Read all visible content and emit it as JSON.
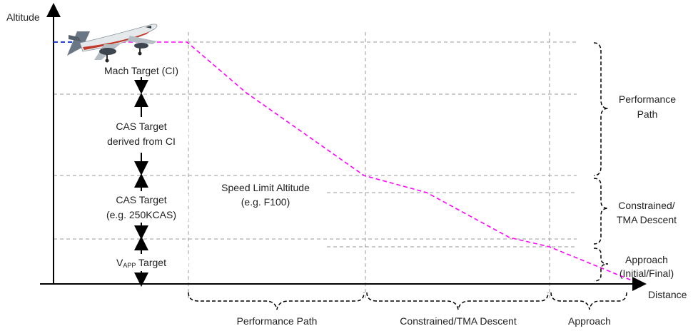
{
  "axes": {
    "y_label": "Altitude",
    "x_label": "Distance"
  },
  "left_bands": [
    {
      "id": "mach",
      "text": "Mach Target (CI)"
    },
    {
      "id": "cas_ci_1",
      "text": "CAS Target"
    },
    {
      "id": "cas_ci_2",
      "text": "derived from CI"
    },
    {
      "id": "cas250_1",
      "text": "CAS Target"
    },
    {
      "id": "cas250_2",
      "text": "(e.g. 250KCAS)"
    },
    {
      "id": "vapp_main",
      "text": "V"
    },
    {
      "id": "vapp_sub",
      "text": "APP"
    },
    {
      "id": "vapp_tail",
      "text": " Target"
    }
  ],
  "speed_limit": {
    "line1": "Speed Limit Altitude",
    "line2": "(e.g. F100)"
  },
  "right_braces": [
    {
      "line1": "Performance",
      "line2": "Path"
    },
    {
      "line1": "Constrained/",
      "line2": "TMA Descent"
    },
    {
      "line1": "Approach",
      "line2": "(Initial/Final)"
    }
  ],
  "bottom_braces": [
    {
      "text": "Performance Path"
    },
    {
      "text": "Constrained/TMA Descent"
    },
    {
      "text": "Approach"
    }
  ],
  "colors": {
    "path": "#ff00ff",
    "cruise_line": "#1f3fd6",
    "grid": "#9a9a9a",
    "axis": "#000000"
  },
  "icons": [
    "airplane-icon"
  ]
}
